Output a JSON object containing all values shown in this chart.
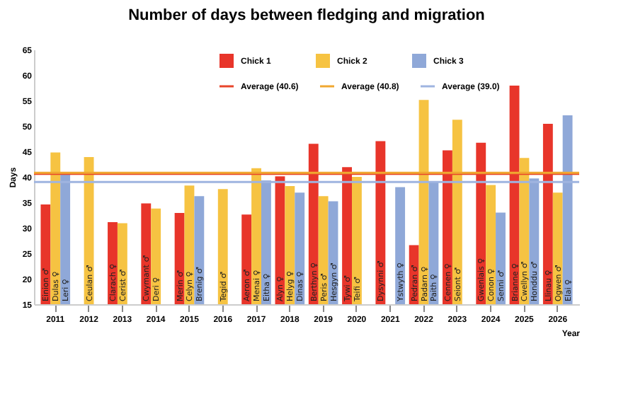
{
  "chart_data": {
    "type": "bar",
    "title": "Number of days between fledging and migration",
    "xlabel": "Year",
    "ylabel": "Days",
    "categories": [
      "2011",
      "2012",
      "2013",
      "2014",
      "2015",
      "2016",
      "2017",
      "2018",
      "2019",
      "2020",
      "2021",
      "2022",
      "2023",
      "2024",
      "2025",
      "2026"
    ],
    "series": [
      {
        "name": "Chick 1",
        "color": "#e8352a",
        "values": [
          34.6,
          null,
          31.1,
          34.8,
          32.9,
          null,
          32.6,
          40.1,
          46.5,
          41.9,
          47.0,
          26.6,
          45.2,
          46.7,
          57.9,
          50.4
        ],
        "value_labels": [
          "Einion ♂",
          null,
          "Clarach ♀",
          "Cwymant ♂",
          "Merin ♂",
          null,
          "Aeron ♂",
          "Alyn ♀",
          "Berthyn ♀",
          "Tywi ♂",
          "Dysynni ♂",
          "Pedran ♂",
          "Cennen ♀",
          "Gwenlais ♀",
          "Brianne ♀",
          "Llinau ♀"
        ]
      },
      {
        "name": "Chick 2",
        "color": "#f6c342",
        "values": [
          44.8,
          43.9,
          30.9,
          33.8,
          38.3,
          37.6,
          41.7,
          38.2,
          36.2,
          40.0,
          null,
          55.1,
          51.2,
          38.4,
          43.7,
          36.9
        ],
        "value_labels": [
          "Dulas ♀",
          "Ceulan ♂",
          "Cerist ♂",
          "Deri ♀",
          "Celyn ♀",
          "Tegid ♂",
          "Menai ♀",
          "Helyg ♀",
          "Peris ♂",
          "Teifi ♂",
          null,
          "Padarn ♀",
          "Seiont ♂",
          "Conon ♀",
          "Cwellyn ♂",
          "Ogwen ♂"
        ]
      },
      {
        "name": "Chick 3",
        "color": "#8fa8d8",
        "values": [
          40.6,
          null,
          null,
          null,
          36.2,
          null,
          39.3,
          36.9,
          35.2,
          null,
          38.0,
          39.0,
          null,
          33.0,
          39.7,
          52.1
        ],
        "value_labels": [
          "Leri ♀",
          null,
          null,
          null,
          "Brenig ♂",
          null,
          "Eitha ♀",
          "Dinas ♀",
          "Hesgyn ♂",
          null,
          "Ystwyth ♀",
          "Paith ♀",
          null,
          "Senni ♂",
          "Honddu ♂",
          "Elai ♀"
        ]
      }
    ],
    "ref_lines": [
      {
        "axis": "y",
        "value": 40.6,
        "label": "Average (40.6)",
        "color": "#e8452a"
      },
      {
        "axis": "y",
        "value": 40.8,
        "label": "Average (40.8)",
        "color": "#f0a830"
      },
      {
        "axis": "y",
        "value": 39.0,
        "label": "Average (39.0)",
        "color": "#9fb4e0"
      }
    ],
    "ylim": [
      15,
      65
    ],
    "yticks": [
      15,
      20,
      25,
      30,
      35,
      40,
      45,
      50,
      55,
      60,
      65
    ],
    "grid": false,
    "legend": "top"
  }
}
